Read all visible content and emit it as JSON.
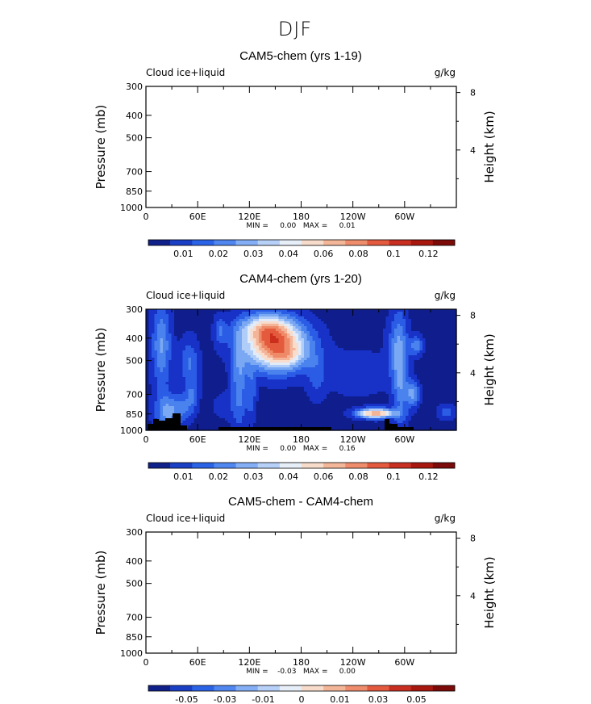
{
  "figure_title": "DJF",
  "colorbar_colors": [
    "#10208a",
    "#1a3fc4",
    "#2b63e6",
    "#4f86f0",
    "#84aef5",
    "#b7d0f8",
    "#e6eef8",
    "#f7dccb",
    "#f3b699",
    "#ee8c6c",
    "#e35a3e",
    "#c92f20",
    "#a8180f",
    "#7c0a08"
  ],
  "heatmap_colors": [
    "#0f1e8c",
    "#1832c8",
    "#2b5ce6",
    "#4a82ee",
    "#7aa8f3",
    "#afcdf8",
    "#e2ecf8",
    "#f8dccc",
    "#f4b498",
    "#ef8a68",
    "#e45a3c",
    "#cc2e1e"
  ],
  "chart_data": [
    {
      "type": "heatmap",
      "title": "CAM5-chem (yrs 1-19)",
      "left_label": "Cloud ice+liquid",
      "right_label": "g/kg",
      "ylabel": "Pressure (mb)",
      "ylabel_right": "Height (km)",
      "x_ticks": [
        "0",
        "60E",
        "120E",
        "180",
        "120W",
        "60W"
      ],
      "x_tick_values": [
        0,
        60,
        120,
        180,
        240,
        300
      ],
      "xlim": [
        0,
        360
      ],
      "y_ticks": [
        "300",
        "400",
        "500",
        "700",
        "850",
        "1000"
      ],
      "y_tick_values": [
        300,
        400,
        500,
        700,
        850,
        1000
      ],
      "ylim": [
        1000,
        300
      ],
      "y_scale": "log",
      "right_ticks": [
        "4",
        "8"
      ],
      "right_tick_values": [
        4,
        8
      ],
      "minmax_label": "MIN =     0.00   MAX =     0.01",
      "min": 0.0,
      "max": 0.01,
      "colorbar_labels": [
        "0.01",
        "0.02",
        "0.03",
        "0.04",
        "0.06",
        "0.08",
        "0.1",
        "0.12"
      ],
      "colorbar_levels": [
        0.01,
        0.02,
        0.03,
        0.04,
        0.06,
        0.08,
        0.1,
        0.12
      ],
      "field": "empty"
    },
    {
      "type": "heatmap",
      "title": "CAM4-chem (yrs 1-20)",
      "left_label": "Cloud ice+liquid",
      "right_label": "g/kg",
      "ylabel": "Pressure (mb)",
      "ylabel_right": "Height (km)",
      "x_ticks": [
        "0",
        "60E",
        "120E",
        "180",
        "120W",
        "60W"
      ],
      "x_tick_values": [
        0,
        60,
        120,
        180,
        240,
        300
      ],
      "xlim": [
        0,
        360
      ],
      "y_ticks": [
        "300",
        "400",
        "500",
        "700",
        "850",
        "1000"
      ],
      "y_tick_values": [
        300,
        400,
        500,
        700,
        850,
        1000
      ],
      "ylim": [
        1000,
        300
      ],
      "y_scale": "log",
      "right_ticks": [
        "4",
        "8"
      ],
      "right_tick_values": [
        4,
        8
      ],
      "minmax_label": "MIN =     0.00   MAX =     0.16",
      "min": 0.0,
      "max": 0.16,
      "colorbar_labels": [
        "0.01",
        "0.02",
        "0.03",
        "0.04",
        "0.06",
        "0.08",
        "0.1",
        "0.12"
      ],
      "colorbar_levels": [
        0.01,
        0.02,
        0.03,
        0.04,
        0.06,
        0.08,
        0.1,
        0.12
      ],
      "field": "cam4"
    },
    {
      "type": "heatmap",
      "title": "CAM5-chem - CAM4-chem",
      "left_label": "Cloud ice+liquid",
      "right_label": "g/kg",
      "ylabel": "Pressure (mb)",
      "ylabel_right": "Height (km)",
      "x_ticks": [
        "0",
        "60E",
        "120E",
        "180",
        "120W",
        "60W"
      ],
      "x_tick_values": [
        0,
        60,
        120,
        180,
        240,
        300
      ],
      "xlim": [
        0,
        360
      ],
      "y_ticks": [
        "300",
        "400",
        "500",
        "700",
        "850",
        "1000"
      ],
      "y_tick_values": [
        300,
        400,
        500,
        700,
        850,
        1000
      ],
      "ylim": [
        1000,
        300
      ],
      "y_scale": "log",
      "right_ticks": [
        "4",
        "8"
      ],
      "right_tick_values": [
        4,
        8
      ],
      "minmax_label": "MIN =    -0.03   MAX =     0.00",
      "min": -0.03,
      "max": 0.0,
      "colorbar_labels": [
        "-0.05",
        "-0.03",
        "-0.01",
        "0",
        "0.01",
        "0.03",
        "0.05"
      ],
      "colorbar_levels": [
        -0.05,
        -0.03,
        -0.01,
        0,
        0.01,
        0.03,
        0.05
      ],
      "field": "empty"
    }
  ]
}
